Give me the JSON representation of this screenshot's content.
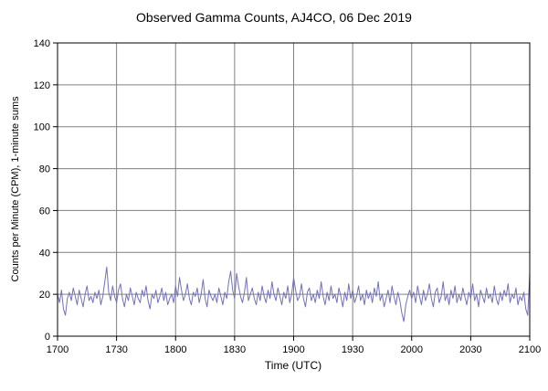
{
  "chart_data": {
    "type": "line",
    "title": "Observed Gamma Counts, AJ4CO, 06 Dec 2019",
    "xlabel": "Time (UTC)",
    "ylabel": "Counts per Minute (CPM), 1-minute sums",
    "x_ticks": [
      "1700",
      "1730",
      "1800",
      "1830",
      "1900",
      "1930",
      "2000",
      "2030",
      "2100"
    ],
    "y_ticks": [
      0,
      20,
      40,
      60,
      80,
      100,
      120,
      140
    ],
    "ylim": [
      0,
      140
    ],
    "x_minutes_span": 240,
    "grid": "on",
    "legend": "none",
    "series_name": "Observed gamma counts, 1-minute sums (CPM)",
    "values": [
      20,
      16,
      22,
      13,
      10,
      18,
      21,
      17,
      23,
      19,
      15,
      22,
      18,
      14,
      20,
      24,
      17,
      19,
      16,
      21,
      18,
      22,
      15,
      19,
      26,
      33,
      21,
      17,
      24,
      19,
      16,
      22,
      25,
      18,
      14,
      20,
      17,
      23,
      19,
      15,
      21,
      18,
      16,
      22,
      19,
      24,
      17,
      13,
      20,
      18,
      22,
      16,
      19,
      23,
      17,
      21,
      15,
      18,
      20,
      16,
      24,
      19,
      28,
      22,
      17,
      20,
      25,
      18,
      15,
      21,
      19,
      23,
      16,
      20,
      27,
      18,
      14,
      22,
      19,
      17,
      20,
      16,
      23,
      19,
      15,
      21,
      18,
      26,
      31,
      22,
      18,
      30,
      24,
      19,
      16,
      21,
      28,
      17,
      20,
      23,
      18,
      15,
      21,
      17,
      24,
      19,
      16,
      22,
      18,
      26,
      20,
      17,
      23,
      19,
      15,
      21,
      18,
      24,
      16,
      20,
      28,
      22,
      17,
      19,
      25,
      18,
      14,
      21,
      23,
      17,
      20,
      16,
      22,
      18,
      26,
      19,
      15,
      21,
      17,
      24,
      18,
      20,
      16,
      23,
      19,
      14,
      21,
      17,
      25,
      18,
      22,
      16,
      19,
      24,
      17,
      20,
      15,
      22,
      18,
      21,
      16,
      23,
      19,
      26,
      17,
      20,
      14,
      18,
      22,
      16,
      24,
      19,
      15,
      21,
      17,
      11,
      7,
      15,
      19,
      22,
      18,
      21,
      16,
      24,
      19,
      15,
      22,
      17,
      20,
      25,
      18,
      14,
      21,
      23,
      16,
      19,
      26,
      17,
      20,
      15,
      22,
      18,
      24,
      16,
      20,
      17,
      23,
      19,
      15,
      21,
      18,
      25,
      17,
      20,
      14,
      22,
      19,
      16,
      23,
      18,
      20,
      16,
      24,
      18,
      15,
      21,
      17,
      22,
      19,
      25,
      16,
      20,
      18,
      23,
      15,
      19,
      17,
      21,
      13,
      10,
      30
    ],
    "colors": {
      "line": "#7272b8",
      "grid": "#808080",
      "border": "#000000",
      "background": "#ffffff"
    }
  }
}
